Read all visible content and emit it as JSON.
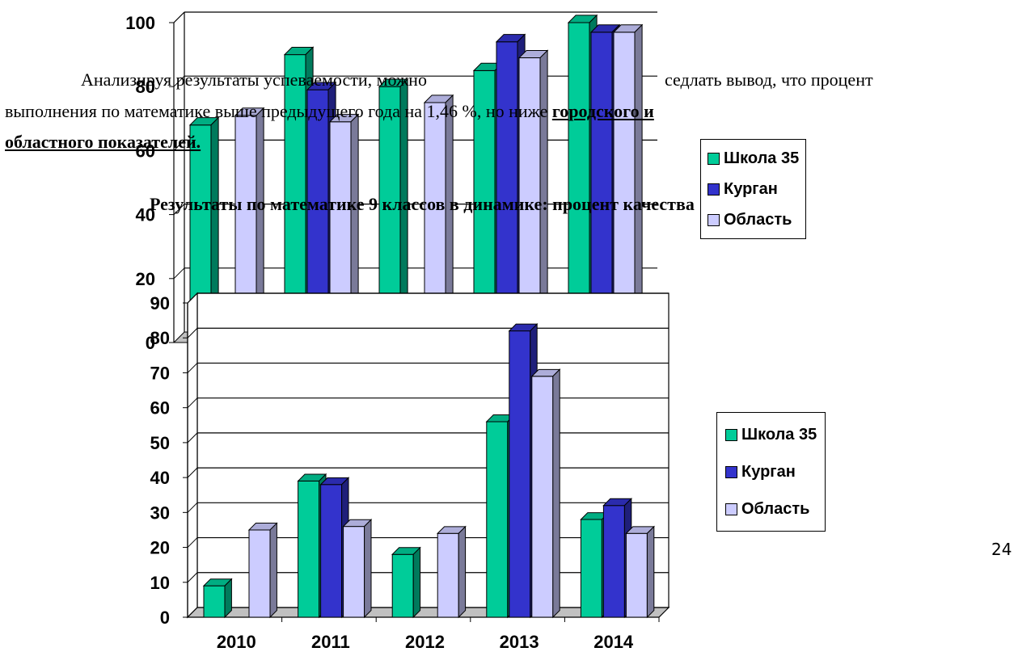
{
  "text": {
    "paragraph_line1_left": "Анализируя результаты успеваемости, можно",
    "paragraph_line1_right": "седлать вывод, что процент",
    "paragraph_line2_plain": "выполнения по математике выше предыдущего года на 1,46 %, но ниже ",
    "paragraph_line2_bold": "городского и",
    "paragraph_line3_bold": "областного показателей.",
    "heading": "Результаты по математике 9 классов в динамике: процент качества",
    "page_number": "24"
  },
  "colors": {
    "school": "#00CC99",
    "kurgan": "#3333CC",
    "oblast": "#CCCCFF"
  },
  "chart_data": [
    {
      "type": "bar",
      "categories": [
        "2010",
        "2011",
        "2012",
        "2013",
        "2014"
      ],
      "series": [
        {
          "name": "Школа 35",
          "values": [
            68,
            90,
            80,
            85,
            100
          ]
        },
        {
          "name": "Курган",
          "values": [
            null,
            79,
            null,
            94,
            97
          ]
        },
        {
          "name": "Область",
          "values": [
            71,
            69,
            75,
            89,
            97
          ]
        }
      ],
      "yticks": [
        "0",
        "20",
        "40",
        "60",
        "80",
        "100"
      ],
      "ylim": [
        0,
        100
      ],
      "legend": [
        "Школа 35",
        "Курган",
        "Область"
      ],
      "legend_position": "right"
    },
    {
      "type": "bar",
      "categories": [
        "2010",
        "2011",
        "2012",
        "2013",
        "2014"
      ],
      "series": [
        {
          "name": "Школа 35",
          "values": [
            9,
            39,
            18,
            56,
            28
          ]
        },
        {
          "name": "Курган",
          "values": [
            null,
            38,
            null,
            82,
            32
          ]
        },
        {
          "name": "Область",
          "values": [
            25,
            26,
            24,
            69,
            24
          ]
        }
      ],
      "yticks": [
        "0",
        "10",
        "20",
        "30",
        "40",
        "50",
        "60",
        "70",
        "80",
        "90"
      ],
      "ylim": [
        0,
        90
      ],
      "legend": [
        "Школа 35",
        "Курган",
        "Область"
      ],
      "legend_position": "right"
    }
  ]
}
